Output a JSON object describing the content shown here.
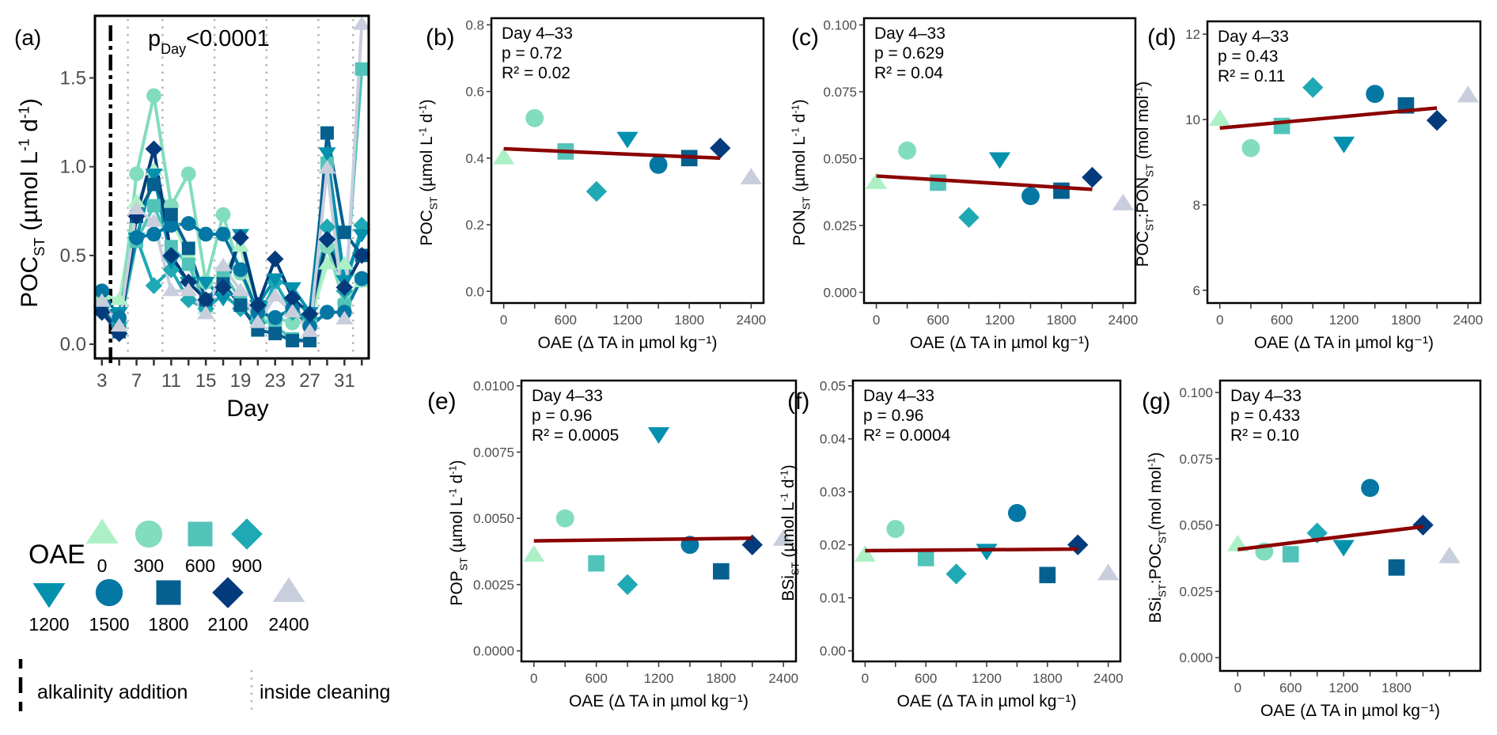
{
  "colors": {
    "0": "#AEF0C6",
    "300": "#82DCBE",
    "600": "#52C3B8",
    "900": "#1FA9B5",
    "1200": "#0391AE",
    "1500": "#0577A4",
    "1800": "#05608F",
    "2100": "#033B7C",
    "2400": "#C9CEDD",
    "fit_line": "#8B0000"
  },
  "shapes": {
    "0": "triangle-up",
    "300": "circle",
    "600": "square",
    "900": "diamond",
    "1200": "triangle-down",
    "1500": "circle",
    "1800": "square",
    "2100": "diamond",
    "2400": "triangle-up"
  },
  "legend": {
    "title": "OAE",
    "levels": [
      "0",
      "300",
      "600",
      "900",
      "1200",
      "1500",
      "1800",
      "2100",
      "2400"
    ],
    "alkalinity_label": "alkalinity addition",
    "cleaning_label": "inside cleaning"
  },
  "chart_data": [
    {
      "id": "a",
      "panel_label": "(a)",
      "type": "line",
      "title": "",
      "annotation": {
        "main": "p",
        "sub": "Day",
        "rest": "<0.0001"
      },
      "xlabel": "Day",
      "ylabel": {
        "main": "POC",
        "sub": "ST",
        "unit": " (µmol L",
        "sup1": "-1",
        "unit2": " d",
        "sup2": "-1",
        "close": ")"
      },
      "xlim": [
        2.2,
        33.8
      ],
      "ylim": [
        -0.08,
        1.85
      ],
      "xticks": [
        3,
        5,
        7,
        9,
        11,
        13,
        15,
        17,
        19,
        21,
        23,
        25,
        27,
        29,
        31,
        33
      ],
      "xtick_labels": [
        "3",
        "",
        "7",
        "",
        "11",
        "",
        "15",
        "",
        "19",
        "",
        "23",
        "",
        "27",
        "",
        "31",
        ""
      ],
      "yticks": [
        0.0,
        0.5,
        1.0,
        1.5
      ],
      "ytick_labels": [
        "0.0",
        "0.5",
        "1.0",
        "1.5"
      ],
      "alkalinity_addition_day": 4,
      "cleaning_days": [
        6,
        10,
        16,
        22,
        28,
        32
      ],
      "x": [
        3,
        5,
        7,
        9,
        11,
        13,
        15,
        17,
        19,
        21,
        23,
        25,
        27,
        29,
        31,
        33
      ],
      "series": [
        {
          "name": "0",
          "values": [
            0.28,
            0.25,
            0.8,
            0.98,
            0.7,
            0.5,
            0.2,
            0.4,
            0.55,
            0.15,
            0.14,
            0.2,
            0.13,
            0.45,
            0.45,
            0.35
          ]
        },
        {
          "name": "300",
          "values": [
            0.22,
            0.1,
            0.96,
            1.4,
            0.78,
            0.96,
            0.35,
            0.73,
            0.4,
            0.18,
            0.15,
            0.12,
            0.14,
            0.55,
            0.23,
            0.36
          ]
        },
        {
          "name": "600",
          "values": [
            0.2,
            0.08,
            0.58,
            0.78,
            0.55,
            0.45,
            0.22,
            0.4,
            0.25,
            0.15,
            0.1,
            0.03,
            0.02,
            1.02,
            0.22,
            1.55
          ]
        },
        {
          "name": "900",
          "values": [
            0.18,
            0.12,
            0.6,
            0.33,
            0.42,
            0.25,
            0.2,
            0.28,
            0.2,
            0.12,
            0.35,
            0.18,
            0.15,
            0.66,
            0.3,
            0.67
          ]
        },
        {
          "name": "1200",
          "values": [
            0.19,
            0.18,
            0.6,
            0.96,
            0.47,
            0.35,
            0.35,
            0.26,
            0.62,
            0.22,
            0.37,
            0.32,
            0.18,
            1.08,
            0.36,
            0.62
          ]
        },
        {
          "name": "1500",
          "values": [
            0.3,
            0.15,
            0.6,
            0.62,
            0.67,
            0.68,
            0.62,
            0.62,
            0.42,
            0.18,
            0.15,
            0.2,
            0.1,
            0.18,
            0.18,
            0.37
          ]
        },
        {
          "name": "1800",
          "values": [
            0.2,
            0.07,
            0.72,
            0.9,
            0.73,
            0.54,
            0.25,
            0.34,
            0.22,
            0.08,
            0.06,
            0.02,
            0.02,
            1.19,
            0.63,
            0.5
          ]
        },
        {
          "name": "2100",
          "values": [
            0.18,
            0.06,
            0.72,
            1.1,
            0.5,
            0.35,
            0.25,
            0.32,
            0.6,
            0.22,
            0.48,
            0.26,
            0.17,
            0.59,
            0.32,
            0.5
          ]
        },
        {
          "name": "2400",
          "values": [
            0.24,
            0.1,
            0.76,
            0.69,
            0.3,
            0.3,
            0.17,
            0.44,
            0.3,
            0.12,
            0.27,
            0.18,
            0.07,
            0.99,
            0.14,
            1.8
          ]
        }
      ]
    },
    {
      "id": "b",
      "panel_label": "(b)",
      "type": "scatter",
      "stats": [
        "Day 4–33",
        "p = 0.72",
        "R² = 0.02"
      ],
      "xlabel": "OAE (Δ TA in µmol kg⁻¹)",
      "ylabel": {
        "main": "POC",
        "sub": "ST",
        "unit": " (µmol L",
        "sup1": "-1",
        "unit2": " d",
        "sup2": "-1",
        "close": ")"
      },
      "xlim": [
        -120,
        2520
      ],
      "ylim": [
        -0.035,
        0.82
      ],
      "xticks": [
        0,
        300,
        600,
        900,
        1200,
        1500,
        1800,
        2100,
        2400
      ],
      "xtick_labels": [
        "0",
        "",
        "600",
        "",
        "1200",
        "",
        "1800",
        "",
        "2400"
      ],
      "yticks": [
        0.0,
        0.2,
        0.4,
        0.6,
        0.8
      ],
      "ytick_labels": [
        "0.0",
        "0.2",
        "0.4",
        "0.6",
        "0.8"
      ],
      "x": [
        0,
        300,
        600,
        900,
        1200,
        1500,
        1800,
        2100,
        2400
      ],
      "values": [
        0.4,
        0.52,
        0.42,
        0.3,
        0.46,
        0.38,
        0.4,
        0.43,
        0.34
      ],
      "fit": {
        "x": [
          0,
          2100
        ],
        "y": [
          0.428,
          0.4
        ]
      }
    },
    {
      "id": "c",
      "panel_label": "(c)",
      "type": "scatter",
      "stats": [
        "Day 4–33",
        "p = 0.629",
        "R² = 0.04"
      ],
      "xlabel": "OAE (Δ TA in µmol kg⁻¹)",
      "ylabel": {
        "main": "PON",
        "sub": "ST",
        "unit": " (µmol L",
        "sup1": "-1",
        "unit2": " d",
        "sup2": "-1",
        "close": ")"
      },
      "xlim": [
        -120,
        2520
      ],
      "ylim": [
        -0.004,
        0.1025
      ],
      "xticks": [
        0,
        300,
        600,
        900,
        1200,
        1500,
        1800,
        2100,
        2400
      ],
      "xtick_labels": [
        "0",
        "",
        "600",
        "",
        "1200",
        "",
        "1800",
        "",
        "2400"
      ],
      "yticks": [
        0.0,
        0.025,
        0.05,
        0.075,
        0.1
      ],
      "ytick_labels": [
        "0.000",
        "0.025",
        "0.050",
        "0.075",
        "0.100"
      ],
      "x": [
        0,
        300,
        600,
        900,
        1200,
        1500,
        1800,
        2100,
        2400
      ],
      "values": [
        0.041,
        0.053,
        0.041,
        0.028,
        0.05,
        0.036,
        0.038,
        0.043,
        0.033
      ],
      "fit": {
        "x": [
          0,
          2100
        ],
        "y": [
          0.0435,
          0.0385
        ]
      }
    },
    {
      "id": "d",
      "panel_label": "(d)",
      "type": "scatter",
      "stats": [
        "Day 4–33",
        "p = 0.43",
        "R² = 0.11"
      ],
      "xlabel": "OAE (Δ TA in µmol kg⁻¹)",
      "ylabel": {
        "main": "POC",
        "sub": "ST",
        "mid": ":PON",
        "sub2": "ST",
        "unit": " (mol mol",
        "sup1": "-1",
        "close": ")"
      },
      "xlim": [
        -120,
        2520
      ],
      "ylim": [
        5.7,
        12.3
      ],
      "xticks": [
        0,
        300,
        600,
        900,
        1200,
        1500,
        1800,
        2100,
        2400
      ],
      "xtick_labels": [
        "0",
        "",
        "600",
        "",
        "1200",
        "",
        "1800",
        "",
        "2400"
      ],
      "yticks": [
        6,
        8,
        10,
        12
      ],
      "ytick_labels": [
        "6",
        "8",
        "10",
        "12"
      ],
      "x": [
        0,
        300,
        600,
        900,
        1200,
        1500,
        1800,
        2100,
        2400
      ],
      "values": [
        10.0,
        9.33,
        9.85,
        10.75,
        9.45,
        10.6,
        10.33,
        9.98,
        10.55
      ],
      "fit": {
        "x": [
          0,
          2100
        ],
        "y": [
          9.8,
          10.27
        ]
      }
    },
    {
      "id": "e",
      "panel_label": "(e)",
      "type": "scatter",
      "stats": [
        "Day 4–33",
        "p = 0.96",
        "R² = 0.0005"
      ],
      "xlabel": "OAE (Δ TA in µmol kg⁻¹)",
      "ylabel": {
        "main": "POP",
        "sub": "ST",
        "unit": " (µmol  L",
        "sup1": "-1",
        "unit2": " d",
        "sup2": "-1",
        "close": ")"
      },
      "xlim": [
        -120,
        2520
      ],
      "ylim": [
        -0.0004,
        0.0102
      ],
      "xticks": [
        0,
        300,
        600,
        900,
        1200,
        1500,
        1800,
        2100,
        2400
      ],
      "xtick_labels": [
        "0",
        "",
        "600",
        "",
        "1200",
        "",
        "1800",
        "",
        "2400"
      ],
      "yticks": [
        0.0,
        0.0025,
        0.005,
        0.0075,
        0.01
      ],
      "ytick_labels": [
        "0.0000",
        "0.0025",
        "0.0050",
        "0.0075",
        "0.0100"
      ],
      "x": [
        0,
        300,
        600,
        900,
        1200,
        1500,
        1800,
        2100,
        2400
      ],
      "values": [
        0.0036,
        0.005,
        0.0033,
        0.0025,
        0.0082,
        0.004,
        0.003,
        0.004,
        0.0042
      ],
      "fit": {
        "x": [
          0,
          2100
        ],
        "y": [
          0.00415,
          0.00425
        ]
      }
    },
    {
      "id": "f",
      "panel_label": "(f)",
      "type": "scatter",
      "stats": [
        "Day 4–33",
        "p = 0.96",
        "R² = 0.0004"
      ],
      "xlabel": "OAE (Δ TA in µmol kg⁻¹)",
      "ylabel": {
        "main": "BSi",
        "sub": "ST",
        "unit": " (µmol L",
        "sup1": "-1",
        "unit2": " d",
        "sup2": "-1",
        "close": ")"
      },
      "xlim": [
        -120,
        2520
      ],
      "ylim": [
        -0.002,
        0.051
      ],
      "xticks": [
        0,
        300,
        600,
        900,
        1200,
        1500,
        1800,
        2100,
        2400
      ],
      "xtick_labels": [
        "0",
        "",
        "600",
        "",
        "1200",
        "",
        "1800",
        "",
        "2400"
      ],
      "yticks": [
        0.0,
        0.01,
        0.02,
        0.03,
        0.04,
        0.05
      ],
      "ytick_labels": [
        "0.00",
        "0.01",
        "0.02",
        "0.03",
        "0.04",
        "0.05"
      ],
      "x": [
        0,
        300,
        600,
        900,
        1200,
        1500,
        1800,
        2100,
        2400
      ],
      "values": [
        0.018,
        0.023,
        0.0175,
        0.0145,
        0.019,
        0.026,
        0.0143,
        0.02,
        0.0145
      ],
      "fit": {
        "x": [
          0,
          2100
        ],
        "y": [
          0.0189,
          0.0192
        ]
      }
    },
    {
      "id": "g",
      "panel_label": "(g)",
      "type": "scatter",
      "stats": [
        "Day 4–33",
        "p = 0.433",
        "R² = 0.10"
      ],
      "xlabel": "OAE (Δ TA in µmol kg⁻¹)",
      "ylabel": {
        "main": "BSi",
        "sub": "ST",
        "mid": ":POC",
        "sub2": "ST",
        "unit": "(mol   mol",
        "sup1": "-1",
        "close": ")"
      },
      "xlim": [
        -200,
        2750
      ],
      "ylim": [
        -0.005,
        0.1045
      ],
      "xticks": [
        0,
        300,
        600,
        900,
        1200,
        1500,
        1800,
        2100,
        2400
      ],
      "xtick_labels": [
        "0",
        "",
        "600",
        "",
        "1200",
        "",
        "1800",
        "",
        ""
      ],
      "yticks": [
        0.0,
        0.025,
        0.05,
        0.075,
        0.1
      ],
      "ytick_labels": [
        "0.000",
        "0.025",
        "0.050",
        "0.075",
        "0.100"
      ],
      "x": [
        0,
        300,
        600,
        900,
        1200,
        1500,
        1800,
        2100,
        2400
      ],
      "values": [
        0.0425,
        0.04,
        0.039,
        0.047,
        0.042,
        0.064,
        0.034,
        0.05,
        0.038
      ],
      "fit": {
        "x": [
          0,
          2100
        ],
        "y": [
          0.0408,
          0.0494
        ]
      }
    }
  ]
}
